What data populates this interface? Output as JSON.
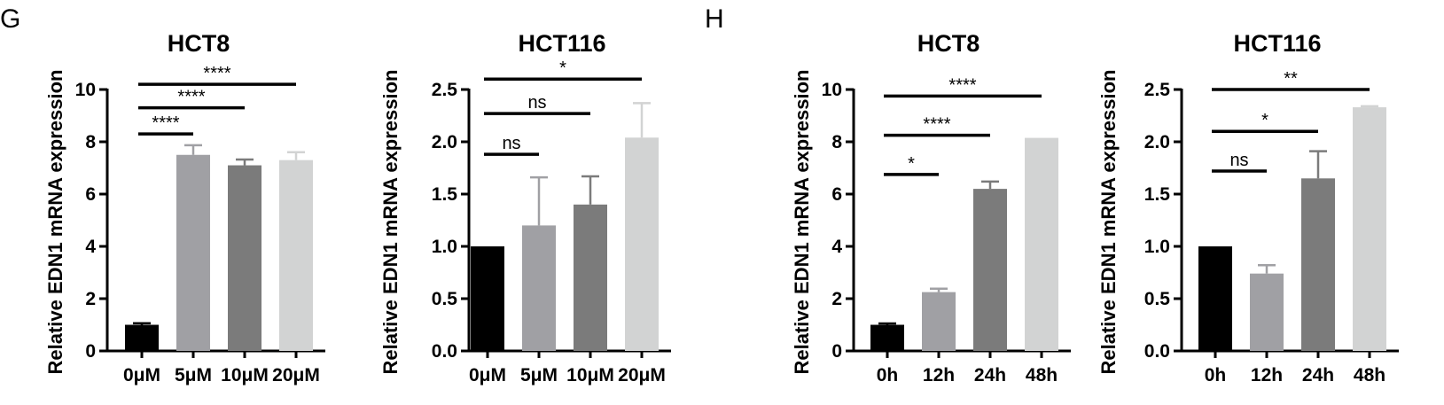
{
  "panels": [
    {
      "letter": "G"
    },
    {
      "letter": "H"
    }
  ],
  "chart_data": [
    {
      "panel": "G",
      "type": "bar",
      "title": "HCT8",
      "ylabel": "Relative EDN1 mRNA expression",
      "categories": [
        "0μM",
        "5μM",
        "10μM",
        "20μM"
      ],
      "values": [
        1.0,
        7.5,
        7.1,
        7.3
      ],
      "errors": [
        0.06,
        0.37,
        0.22,
        0.3
      ],
      "colors": [
        "#000000",
        "#a0a0a4",
        "#7b7b7b",
        "#d2d3d3"
      ],
      "ylim": [
        0,
        10
      ],
      "yticks": [
        "0",
        "2",
        "4",
        "6",
        "8",
        "10"
      ],
      "yticks_values": [
        0,
        2,
        4,
        6,
        8,
        10
      ],
      "comparisons": [
        {
          "from": 0,
          "to": 1,
          "y": 8.3,
          "label": "****"
        },
        {
          "from": 0,
          "to": 2,
          "y": 9.3,
          "label": "****"
        },
        {
          "from": 0,
          "to": 3,
          "y": 10.2,
          "label": "****"
        }
      ]
    },
    {
      "panel": "G",
      "type": "bar",
      "title": "HCT116",
      "ylabel": "Relative EDN1 mRNA expression",
      "categories": [
        "0μM",
        "5μM",
        "10μM",
        "20μM"
      ],
      "values": [
        1.0,
        1.2,
        1.4,
        2.04
      ],
      "errors": [
        0,
        0.46,
        0.27,
        0.33
      ],
      "colors": [
        "#000000",
        "#a0a0a4",
        "#7b7b7b",
        "#d2d3d3"
      ],
      "ylim": [
        0,
        2.5
      ],
      "yticks": [
        "0.0",
        "0.5",
        "1.0",
        "1.5",
        "2.0",
        "2.5"
      ],
      "yticks_values": [
        0,
        0.5,
        1.0,
        1.5,
        2.0,
        2.5
      ],
      "comparisons": [
        {
          "from": 0,
          "to": 1,
          "y": 1.88,
          "label": "ns"
        },
        {
          "from": 0,
          "to": 2,
          "y": 2.27,
          "label": "ns"
        },
        {
          "from": 0,
          "to": 3,
          "y": 2.6,
          "label": "*"
        }
      ]
    },
    {
      "panel": "H",
      "type": "bar",
      "title": "HCT8",
      "ylabel": "Relative EDN1 mRNA expression",
      "categories": [
        "0h",
        "12h",
        "24h",
        "48h"
      ],
      "values": [
        1.0,
        2.25,
        6.2,
        8.15
      ],
      "errors": [
        0.05,
        0.13,
        0.28,
        0
      ],
      "colors": [
        "#000000",
        "#a0a0a4",
        "#7b7b7b",
        "#d2d3d3"
      ],
      "ylim": [
        0,
        10
      ],
      "yticks": [
        "0",
        "2",
        "4",
        "6",
        "8",
        "10"
      ],
      "yticks_values": [
        0,
        2,
        4,
        6,
        8,
        10
      ],
      "comparisons": [
        {
          "from": 0,
          "to": 1,
          "y": 6.75,
          "label": "*"
        },
        {
          "from": 0,
          "to": 2,
          "y": 8.25,
          "label": "****"
        },
        {
          "from": 0,
          "to": 3,
          "y": 9.75,
          "label": "****"
        }
      ]
    },
    {
      "panel": "H",
      "type": "bar",
      "title": "HCT116",
      "ylabel": "Relative EDN1 mRNA expression",
      "categories": [
        "0h",
        "12h",
        "24h",
        "48h"
      ],
      "values": [
        1.0,
        0.74,
        1.65,
        2.33
      ],
      "errors": [
        0,
        0.08,
        0.26,
        0.01
      ],
      "colors": [
        "#000000",
        "#a0a0a4",
        "#7b7b7b",
        "#d2d3d3"
      ],
      "ylim": [
        0,
        2.5
      ],
      "yticks": [
        "0.0",
        "0.5",
        "1.0",
        "1.5",
        "2.0",
        "2.5"
      ],
      "yticks_values": [
        0,
        0.5,
        1.0,
        1.5,
        2.0,
        2.5
      ],
      "comparisons": [
        {
          "from": 0,
          "to": 1,
          "y": 1.72,
          "label": "ns"
        },
        {
          "from": 0,
          "to": 2,
          "y": 2.1,
          "label": "*"
        },
        {
          "from": 0,
          "to": 3,
          "y": 2.5,
          "label": "**"
        }
      ]
    }
  ]
}
